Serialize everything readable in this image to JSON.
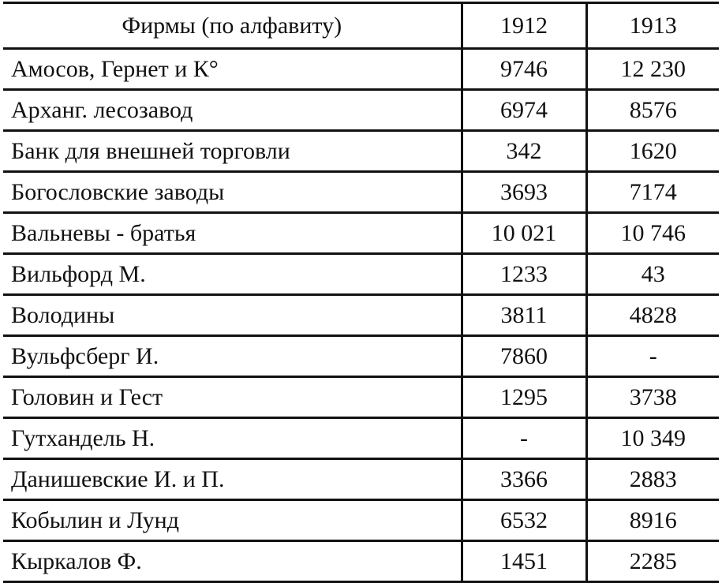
{
  "table": {
    "headers": [
      "Фирмы (по алфавиту)",
      "1912",
      "1913"
    ],
    "rows": [
      [
        "Амосов, Гернет и К°",
        "9746",
        "12 230"
      ],
      [
        "Арханг. лесозавод",
        "6974",
        "8576"
      ],
      [
        "Банк для внешней торговли",
        "342",
        "1620"
      ],
      [
        "Богословские заводы",
        "3693",
        "7174"
      ],
      [
        "Вальневы - братья",
        "10 021",
        "10 746"
      ],
      [
        "Вильфорд М.",
        "1233",
        "43"
      ],
      [
        "Володины",
        "3811",
        "4828"
      ],
      [
        "Вульфсберг И.",
        "7860",
        "-"
      ],
      [
        "Головин и Гест",
        "1295",
        "3738"
      ],
      [
        "Гутхандель Н.",
        "-",
        "10 349"
      ],
      [
        "Данишевские И. и П.",
        "3366",
        "2883"
      ],
      [
        "Кобылин и Лунд",
        "6532",
        "8916"
      ],
      [
        "Кыркалов Ф.",
        "1451",
        "2285"
      ]
    ]
  }
}
